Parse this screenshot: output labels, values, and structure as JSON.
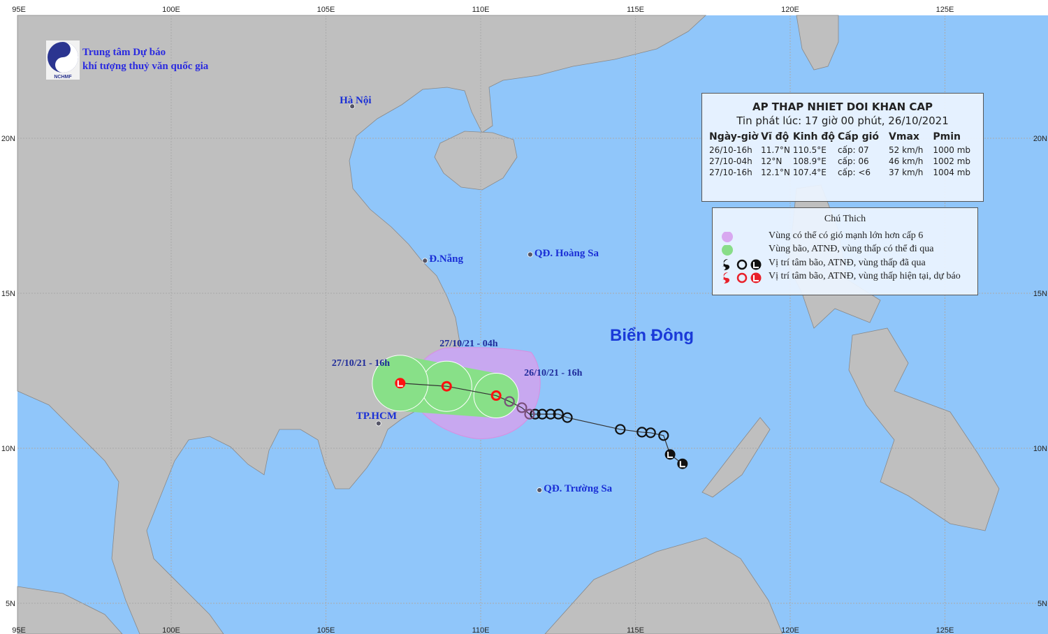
{
  "header": {
    "logo_caption": "NCHMF",
    "org_line1": "Trung tâm Dự báo",
    "org_line2": "khí tượng thuỷ văn quốc gia"
  },
  "info_box": {
    "title": "AP THAP NHIET DOI KHAN CAP",
    "issued": "Tin phát lúc: 17 giờ 00 phút, 26/10/2021",
    "columns": [
      "Ngày-giờ",
      "Vĩ độ",
      "Kinh độ",
      "Cấp gió",
      "Vmax",
      "Pmin"
    ],
    "rows": [
      [
        "26/10-16h",
        "11.7°N",
        "110.5°E",
        "cấp: 07",
        "52 km/h",
        "1000 mb"
      ],
      [
        "27/10-04h",
        "12°N",
        "108.9°E",
        "cấp: 06",
        "46 km/h",
        "1002 mb"
      ],
      [
        "27/10-16h",
        "12.1°N",
        "107.4°E",
        "cấp: <6",
        "37 km/h",
        "1004 mb"
      ]
    ]
  },
  "legend": {
    "title": "Chú Thich",
    "items": [
      {
        "text": "Vùng có thể có gió mạnh lớn hơn cấp 6",
        "symbol": "purple-circle",
        "color": "#d8a8f0"
      },
      {
        "text": "Vùng bão, ATNĐ, vùng thấp có thể đi qua",
        "symbol": "green-circle",
        "color": "#88dd88"
      },
      {
        "text": "Vị trí tâm bão, ATNĐ, vùng thấp đã qua",
        "symbol": "black-storm-icons",
        "color": "#111111"
      },
      {
        "text": "Vị trí tâm bão, ATNĐ, vùng thấp hiện tại, dự báo",
        "symbol": "red-storm-icons",
        "color": "#e8202a"
      }
    ]
  },
  "map": {
    "colors": {
      "sea": "#90c6fa",
      "land": "#bfbfbf",
      "risk_zone": "#c8a8f0",
      "track_zone": "#88e088",
      "forecast": "#ff1010",
      "past": "#111111"
    },
    "lon_labels": [
      "95E",
      "100E",
      "105E",
      "110E",
      "115E",
      "120E",
      "125E"
    ],
    "lat_labels": [
      "20N",
      "15N",
      "10N",
      "5N"
    ],
    "sea_name": "Biển Đông",
    "places": [
      {
        "name": "Hà Nội",
        "lon": 105.85,
        "lat": 21.03
      },
      {
        "name": "Đ.Nẵng",
        "lon": 108.2,
        "lat": 16.05
      },
      {
        "name": "QĐ. Hoàng Sa",
        "lon": 111.6,
        "lat": 16.25
      },
      {
        "name": "TP.HCM",
        "lon": 106.7,
        "lat": 10.8
      },
      {
        "name": "QĐ. Trường Sa",
        "lon": 111.9,
        "lat": 8.65
      }
    ],
    "forecast_points": [
      {
        "label": "26/10/21 - 16h",
        "lon": 110.5,
        "lat": 11.7
      },
      {
        "label": "27/10/21 - 04h",
        "lon": 108.9,
        "lat": 12.0
      },
      {
        "label": "27/10/21 - 16h",
        "lon": 107.4,
        "lat": 12.1
      }
    ],
    "past_track": [
      {
        "lon": 116.52,
        "lat": 9.5,
        "type": "L"
      },
      {
        "lon": 116.12,
        "lat": 9.8,
        "type": "L"
      },
      {
        "lon": 115.91,
        "lat": 10.41,
        "type": "O"
      },
      {
        "lon": 115.49,
        "lat": 10.5,
        "type": "O"
      },
      {
        "lon": 115.21,
        "lat": 10.52,
        "type": "O"
      },
      {
        "lon": 114.51,
        "lat": 10.61,
        "type": "O"
      },
      {
        "lon": 112.8,
        "lat": 10.99,
        "type": "O"
      },
      {
        "lon": 112.51,
        "lat": 11.1,
        "type": "O"
      },
      {
        "lon": 112.26,
        "lat": 11.1,
        "type": "O"
      },
      {
        "lon": 111.99,
        "lat": 11.1,
        "type": "O"
      },
      {
        "lon": 111.76,
        "lat": 11.1,
        "type": "O"
      },
      {
        "lon": 111.58,
        "lat": 11.1,
        "type": "O"
      },
      {
        "lon": 111.33,
        "lat": 11.31,
        "type": "O"
      },
      {
        "lon": 110.93,
        "lat": 11.51,
        "type": "O"
      }
    ]
  }
}
